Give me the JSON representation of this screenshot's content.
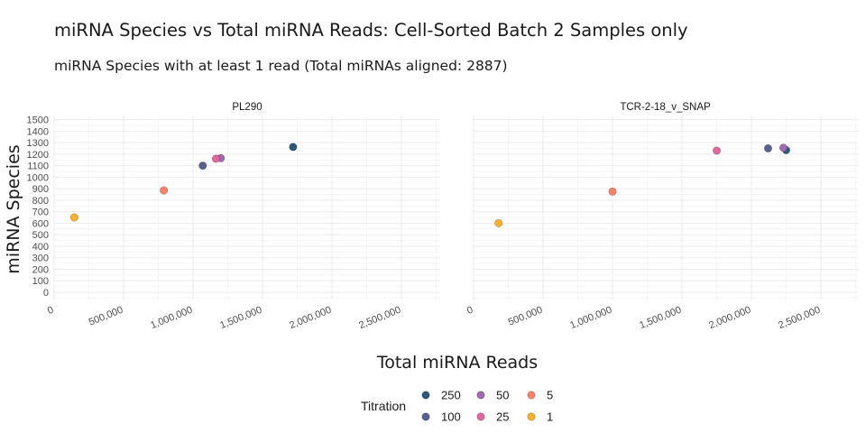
{
  "title": "miRNA Species vs Total miRNA Reads: Cell-Sorted Batch 2 Samples only",
  "subtitle": "miRNA Species with at least 1 read (Total miRNAs aligned: 2887)",
  "chart_data": {
    "type": "scatter",
    "xlabel": "Total miRNA Reads",
    "ylabel": "miRNA Species",
    "xlim": [
      0,
      2800000
    ],
    "ylim": [
      -50,
      1580
    ],
    "x_ticks": [
      0,
      500000,
      1000000,
      1500000,
      2000000,
      2500000
    ],
    "x_tick_labels": [
      "0",
      "500,000",
      "1,000,000",
      "1,500,000",
      "2,000,000",
      "2,500,000"
    ],
    "y_ticks": [
      0,
      100,
      200,
      300,
      400,
      500,
      600,
      700,
      800,
      900,
      1000,
      1100,
      1200,
      1300,
      1400,
      1500
    ],
    "y_tick_labels": [
      "0",
      "100",
      "200",
      "300",
      "400",
      "500",
      "600",
      "700",
      "800",
      "900",
      "1000",
      "1100",
      "1200",
      "1300",
      "1400",
      "1500"
    ],
    "grid": true,
    "legend": {
      "title": "Titration",
      "position": "bottom",
      "entries": [
        {
          "label": "250",
          "color": "#2b5a78"
        },
        {
          "label": "100",
          "color": "#5a6190"
        },
        {
          "label": "50",
          "color": "#a467b2"
        },
        {
          "label": "25",
          "color": "#e2689e"
        },
        {
          "label": "5",
          "color": "#f5836a"
        },
        {
          "label": "1",
          "color": "#f9b12f"
        }
      ]
    },
    "panels": [
      {
        "name": "PL290",
        "series": [
          {
            "name": "250",
            "color": "#2b5a78",
            "points": [
              [
                1720000,
                1262
              ]
            ]
          },
          {
            "name": "100",
            "color": "#5a6190",
            "points": [
              [
                1070000,
                1100
              ]
            ]
          },
          {
            "name": "50",
            "color": "#a467b2",
            "points": [
              [
                1200000,
                1165
              ]
            ]
          },
          {
            "name": "25",
            "color": "#e2689e",
            "points": [
              [
                1165000,
                1160
              ]
            ]
          },
          {
            "name": "5",
            "color": "#f5836a",
            "points": [
              [
                790000,
                885
              ]
            ]
          },
          {
            "name": "1",
            "color": "#f9b12f",
            "points": [
              [
                145000,
                650
              ]
            ]
          }
        ]
      },
      {
        "name": "TCR-2-18_v_SNAP",
        "series": [
          {
            "name": "250",
            "color": "#2b5a78",
            "points": [
              [
                2250000,
                1235
              ]
            ]
          },
          {
            "name": "100",
            "color": "#5a6190",
            "points": [
              [
                2120000,
                1250
              ]
            ]
          },
          {
            "name": "50",
            "color": "#a467b2",
            "points": [
              [
                2230000,
                1255
              ]
            ]
          },
          {
            "name": "25",
            "color": "#e2689e",
            "points": [
              [
                1750000,
                1230
              ]
            ]
          },
          {
            "name": "5",
            "color": "#f5836a",
            "points": [
              [
                1000000,
                875
              ]
            ]
          },
          {
            "name": "1",
            "color": "#f9b12f",
            "points": [
              [
                180000,
                600
              ]
            ]
          }
        ]
      }
    ]
  }
}
